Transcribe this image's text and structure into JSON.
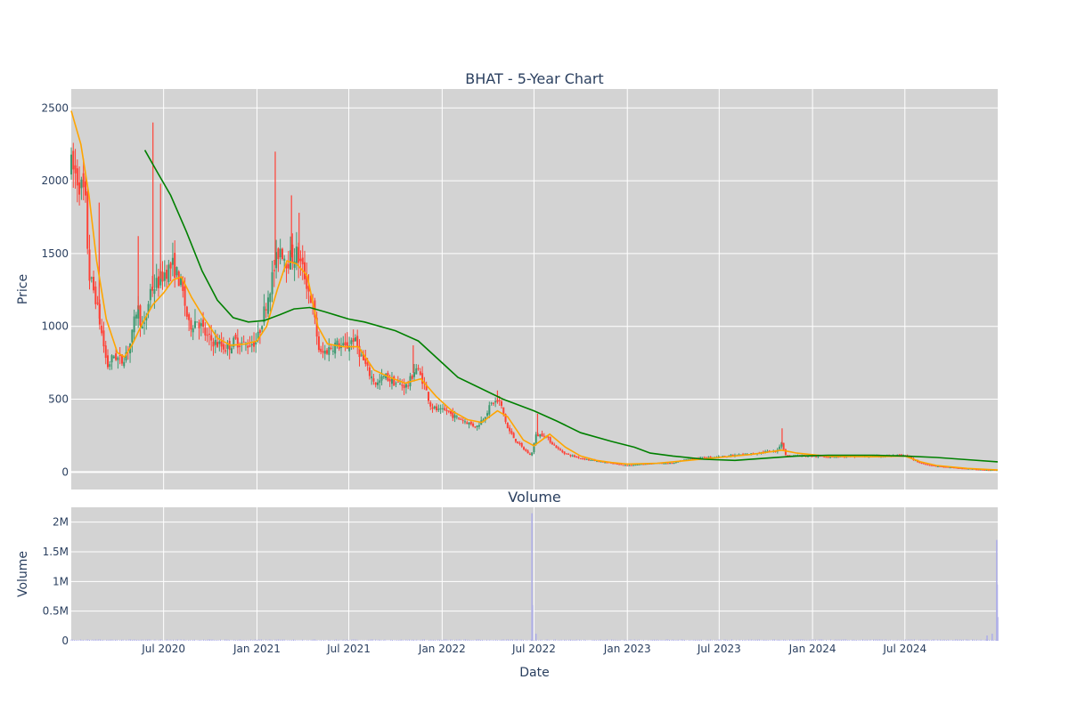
{
  "chart_data": [
    {
      "type": "candlestick",
      "title": "BHAT - 5-Year Chart",
      "xlabel": "",
      "ylabel": "Price",
      "y_ticks": [
        "0",
        "500",
        "1000",
        "1500",
        "2000",
        "2500"
      ],
      "ylim": [
        -120,
        2630
      ],
      "xlim": [
        "2020-01-01",
        "2024-12-31"
      ],
      "grid": true,
      "legend": "none",
      "colors": {
        "increasing": "#3d9970",
        "decreasing": "#ff4136",
        "short_ma": "#ffa500",
        "long_ma": "#008000",
        "plot_bg": "#d3d3d3",
        "grid": "#ffffff"
      },
      "price_anchors": [
        [
          "2020-01-01",
          2100
        ],
        [
          "2020-01-15",
          2000
        ],
        [
          "2020-01-28",
          1900
        ],
        [
          "2020-02-05",
          1350
        ],
        [
          "2020-02-18",
          1200
        ],
        [
          "2020-03-01",
          950
        ],
        [
          "2020-03-12",
          720
        ],
        [
          "2020-03-25",
          800
        ],
        [
          "2020-04-10",
          760
        ],
        [
          "2020-04-28",
          900
        ],
        [
          "2020-05-10",
          1150
        ],
        [
          "2020-05-22",
          950
        ],
        [
          "2020-06-05",
          1250
        ],
        [
          "2020-06-20",
          1300
        ],
        [
          "2020-07-05",
          1380
        ],
        [
          "2020-07-20",
          1420
        ],
        [
          "2020-08-05",
          1280
        ],
        [
          "2020-08-20",
          1000
        ],
        [
          "2020-09-05",
          1050
        ],
        [
          "2020-09-25",
          920
        ],
        [
          "2020-10-15",
          880
        ],
        [
          "2020-11-01",
          850
        ],
        [
          "2020-11-20",
          900
        ],
        [
          "2020-12-10",
          870
        ],
        [
          "2021-01-01",
          900
        ],
        [
          "2021-01-15",
          1100
        ],
        [
          "2021-02-01",
          1350
        ],
        [
          "2021-02-15",
          1550
        ],
        [
          "2021-03-01",
          1450
        ],
        [
          "2021-03-20",
          1500
        ],
        [
          "2021-04-05",
          1350
        ],
        [
          "2021-04-20",
          1150
        ],
        [
          "2021-05-05",
          800
        ],
        [
          "2021-05-20",
          840
        ],
        [
          "2021-06-05",
          880
        ],
        [
          "2021-06-25",
          850
        ],
        [
          "2021-07-10",
          920
        ],
        [
          "2021-07-25",
          800
        ],
        [
          "2021-08-10",
          680
        ],
        [
          "2021-08-25",
          600
        ],
        [
          "2021-09-10",
          660
        ],
        [
          "2021-09-25",
          620
        ],
        [
          "2021-10-10",
          600
        ],
        [
          "2021-10-25",
          590
        ],
        [
          "2021-11-10",
          720
        ],
        [
          "2021-11-25",
          620
        ],
        [
          "2021-12-10",
          450
        ],
        [
          "2021-12-25",
          420
        ],
        [
          "2022-01-10",
          420
        ],
        [
          "2022-01-25",
          380
        ],
        [
          "2022-02-10",
          360
        ],
        [
          "2022-02-25",
          330
        ],
        [
          "2022-03-10",
          310
        ],
        [
          "2022-03-25",
          380
        ],
        [
          "2022-04-10",
          480
        ],
        [
          "2022-04-25",
          480
        ],
        [
          "2022-05-10",
          300
        ],
        [
          "2022-05-25",
          220
        ],
        [
          "2022-06-10",
          160
        ],
        [
          "2022-06-25",
          110
        ],
        [
          "2022-07-05",
          250
        ],
        [
          "2022-07-20",
          260
        ],
        [
          "2022-08-05",
          200
        ],
        [
          "2022-08-20",
          150
        ],
        [
          "2022-09-05",
          120
        ],
        [
          "2022-10-01",
          95
        ],
        [
          "2022-11-01",
          75
        ],
        [
          "2022-12-01",
          60
        ],
        [
          "2023-01-01",
          45
        ],
        [
          "2023-02-01",
          55
        ],
        [
          "2023-03-01",
          60
        ],
        [
          "2023-04-01",
          60
        ],
        [
          "2023-05-01",
          90
        ],
        [
          "2023-06-01",
          100
        ],
        [
          "2023-07-01",
          105
        ],
        [
          "2023-08-01",
          115
        ],
        [
          "2023-09-01",
          125
        ],
        [
          "2023-10-01",
          140
        ],
        [
          "2023-10-20",
          140
        ],
        [
          "2023-11-01",
          200
        ],
        [
          "2023-11-10",
          110
        ],
        [
          "2023-12-01",
          115
        ],
        [
          "2024-01-01",
          108
        ],
        [
          "2024-03-01",
          105
        ],
        [
          "2024-05-01",
          108
        ],
        [
          "2024-07-01",
          115
        ],
        [
          "2024-08-01",
          60
        ],
        [
          "2024-09-01",
          40
        ],
        [
          "2024-10-01",
          30
        ],
        [
          "2024-11-01",
          22
        ],
        [
          "2024-12-01",
          15
        ],
        [
          "2024-12-31",
          12
        ]
      ],
      "spikes": [
        [
          "2020-02-25",
          1850
        ],
        [
          "2020-05-12",
          1620
        ],
        [
          "2020-06-10",
          2400
        ],
        [
          "2020-06-25",
          1980
        ],
        [
          "2021-02-06",
          2200
        ],
        [
          "2021-03-10",
          1900
        ],
        [
          "2021-03-25",
          1780
        ],
        [
          "2021-11-05",
          870
        ],
        [
          "2022-04-20",
          560
        ],
        [
          "2022-07-08",
          400
        ],
        [
          "2023-11-02",
          300
        ]
      ],
      "short_ma": [
        [
          "2020-01-01",
          2480
        ],
        [
          "2020-01-20",
          2250
        ],
        [
          "2020-02-05",
          1900
        ],
        [
          "2020-02-20",
          1450
        ],
        [
          "2020-03-10",
          1050
        ],
        [
          "2020-04-01",
          820
        ],
        [
          "2020-04-15",
          790
        ],
        [
          "2020-05-01",
          880
        ],
        [
          "2020-05-20",
          1020
        ],
        [
          "2020-06-10",
          1150
        ],
        [
          "2020-07-01",
          1230
        ],
        [
          "2020-07-20",
          1320
        ],
        [
          "2020-08-05",
          1340
        ],
        [
          "2020-08-25",
          1200
        ],
        [
          "2020-09-20",
          1050
        ],
        [
          "2020-10-15",
          920
        ],
        [
          "2020-11-10",
          870
        ],
        [
          "2020-12-10",
          880
        ],
        [
          "2021-01-01",
          900
        ],
        [
          "2021-01-20",
          1000
        ],
        [
          "2021-02-10",
          1250
        ],
        [
          "2021-03-01",
          1450
        ],
        [
          "2021-03-20",
          1430
        ],
        [
          "2021-04-10",
          1350
        ],
        [
          "2021-05-01",
          1000
        ],
        [
          "2021-05-20",
          880
        ],
        [
          "2021-06-20",
          860
        ],
        [
          "2021-07-20",
          860
        ],
        [
          "2021-08-20",
          700
        ],
        [
          "2021-09-20",
          650
        ],
        [
          "2021-10-20",
          610
        ],
        [
          "2021-11-20",
          640
        ],
        [
          "2021-12-20",
          520
        ],
        [
          "2022-01-20",
          420
        ],
        [
          "2022-02-20",
          360
        ],
        [
          "2022-03-20",
          340
        ],
        [
          "2022-04-20",
          420
        ],
        [
          "2022-05-10",
          380
        ],
        [
          "2022-06-10",
          220
        ],
        [
          "2022-07-01",
          180
        ],
        [
          "2022-08-01",
          260
        ],
        [
          "2022-09-01",
          170
        ],
        [
          "2022-10-01",
          110
        ],
        [
          "2022-11-01",
          80
        ],
        [
          "2022-12-01",
          65
        ],
        [
          "2023-01-01",
          55
        ],
        [
          "2023-03-01",
          60
        ],
        [
          "2023-05-01",
          80
        ],
        [
          "2023-07-01",
          100
        ],
        [
          "2023-09-01",
          120
        ],
        [
          "2023-11-01",
          150
        ],
        [
          "2023-12-01",
          130
        ],
        [
          "2024-02-01",
          108
        ],
        [
          "2024-05-01",
          105
        ],
        [
          "2024-07-01",
          110
        ],
        [
          "2024-08-01",
          70
        ],
        [
          "2024-09-01",
          45
        ],
        [
          "2024-11-01",
          25
        ],
        [
          "2024-12-31",
          14
        ]
      ],
      "long_ma": [
        [
          "2020-05-25",
          2210
        ],
        [
          "2020-06-20",
          2050
        ],
        [
          "2020-07-15",
          1900
        ],
        [
          "2020-08-15",
          1650
        ],
        [
          "2020-09-15",
          1380
        ],
        [
          "2020-10-15",
          1180
        ],
        [
          "2020-11-15",
          1060
        ],
        [
          "2020-12-15",
          1030
        ],
        [
          "2021-01-15",
          1040
        ],
        [
          "2021-02-15",
          1080
        ],
        [
          "2021-03-15",
          1120
        ],
        [
          "2021-04-15",
          1130
        ],
        [
          "2021-05-15",
          1100
        ],
        [
          "2021-07-01",
          1050
        ],
        [
          "2021-08-01",
          1030
        ],
        [
          "2021-10-01",
          970
        ],
        [
          "2021-11-15",
          900
        ],
        [
          "2022-01-01",
          750
        ],
        [
          "2022-02-01",
          650
        ],
        [
          "2022-03-15",
          580
        ],
        [
          "2022-05-01",
          500
        ],
        [
          "2022-07-01",
          420
        ],
        [
          "2022-08-15",
          350
        ],
        [
          "2022-10-01",
          270
        ],
        [
          "2022-12-01",
          210
        ],
        [
          "2023-01-15",
          170
        ],
        [
          "2023-02-15",
          130
        ],
        [
          "2023-04-01",
          110
        ],
        [
          "2023-06-01",
          88
        ],
        [
          "2023-08-01",
          80
        ],
        [
          "2023-10-01",
          95
        ],
        [
          "2023-12-01",
          110
        ],
        [
          "2024-02-01",
          115
        ],
        [
          "2024-05-01",
          115
        ],
        [
          "2024-07-01",
          110
        ],
        [
          "2024-09-01",
          100
        ],
        [
          "2024-11-01",
          85
        ],
        [
          "2024-12-31",
          70
        ]
      ]
    },
    {
      "type": "bar",
      "title": "Volume",
      "xlabel": "Date",
      "ylabel": "Volume",
      "y_ticks": [
        "0",
        "0.5M",
        "1M",
        "1.5M",
        "2M"
      ],
      "ylim": [
        0,
        2250000
      ],
      "x_ticks": [
        "Jul 2020",
        "Jan 2021",
        "Jul 2021",
        "Jan 2022",
        "Jul 2022",
        "Jan 2023",
        "Jul 2023",
        "Jan 2024",
        "Jul 2024"
      ],
      "x_tick_dates": [
        "2020-07-01",
        "2021-01-01",
        "2021-07-01",
        "2022-01-01",
        "2022-07-01",
        "2023-01-01",
        "2023-07-01",
        "2024-01-01",
        "2024-07-01"
      ],
      "bar_color": "#b0b0e8",
      "peaks": [
        [
          "2022-06-27",
          2150000
        ],
        [
          "2022-06-28",
          600000
        ],
        [
          "2022-07-05",
          120000
        ],
        [
          "2024-12-29",
          1700000
        ],
        [
          "2024-12-30",
          950000
        ],
        [
          "2024-12-31",
          400000
        ],
        [
          "2024-12-20",
          120000
        ],
        [
          "2024-12-10",
          90000
        ]
      ],
      "baseline_volume": 20000
    }
  ]
}
